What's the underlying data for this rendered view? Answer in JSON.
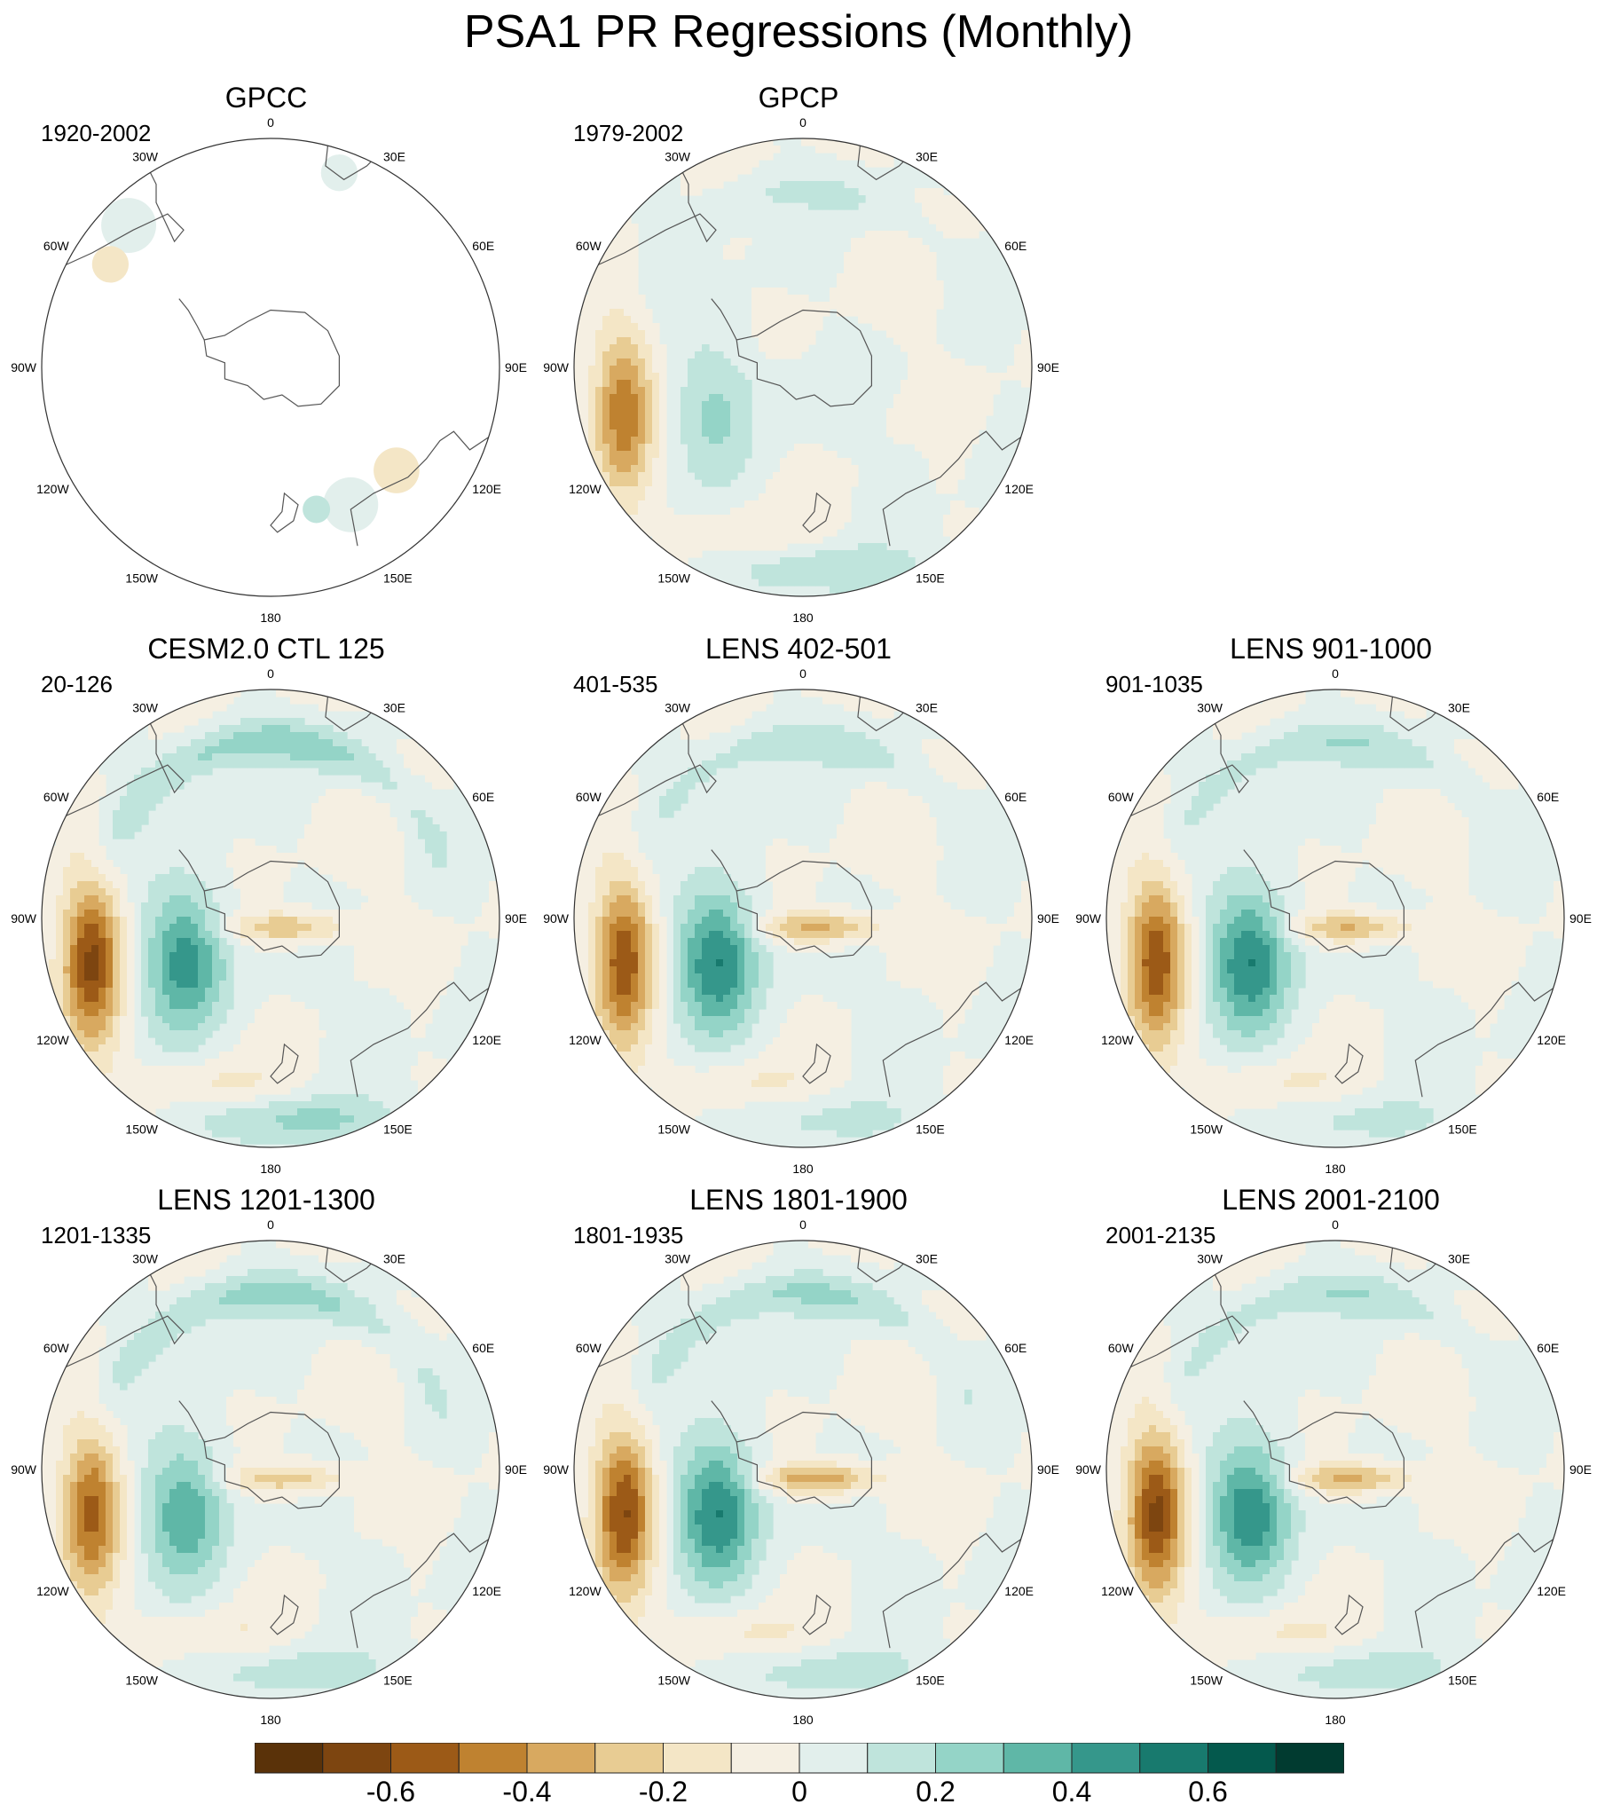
{
  "chart_data": {
    "type": "polar-contour-map-grid",
    "title": "PSA1 PR Regressions (Monthly)",
    "longitude_labels": [
      "0",
      "30E",
      "60E",
      "90E",
      "120E",
      "150E",
      "180",
      "150W",
      "120W",
      "90W",
      "60W",
      "30W"
    ],
    "panels": [
      {
        "title": "GPCC",
        "years": "1920-2002",
        "coverage": "land-only",
        "pattern": [
          0,
          0,
          0,
          0,
          0
        ]
      },
      {
        "title": "GPCP",
        "years": "1979-2002",
        "coverage": "full",
        "pattern": [
          -0.45,
          0.22,
          0.12,
          0.05,
          0.18
        ]
      },
      {
        "title": "CESM2.0 CTL 125",
        "years": "20-126",
        "coverage": "full",
        "pattern": [
          -0.6,
          0.45,
          0.28,
          -0.3,
          0.22
        ]
      },
      {
        "title": "LENS 402-501",
        "years": "401-535",
        "coverage": "full",
        "pattern": [
          -0.55,
          0.5,
          0.18,
          -0.35,
          0.12
        ]
      },
      {
        "title": "LENS 901-1000",
        "years": "901-1035",
        "coverage": "full",
        "pattern": [
          -0.55,
          0.5,
          0.2,
          -0.33,
          0.12
        ]
      },
      {
        "title": "LENS 1201-1300",
        "years": "1201-1335",
        "coverage": "full",
        "pattern": [
          -0.5,
          0.38,
          0.25,
          -0.28,
          0.15
        ]
      },
      {
        "title": "LENS 1801-1900",
        "years": "1801-1935",
        "coverage": "full",
        "pattern": [
          -0.58,
          0.5,
          0.22,
          -0.4,
          0.15
        ]
      },
      {
        "title": "LENS 2001-2100",
        "years": "2001-2135",
        "coverage": "full",
        "pattern": [
          -0.6,
          0.48,
          0.2,
          -0.35,
          0.15
        ]
      }
    ],
    "colorbar": {
      "levels": [
        -0.7,
        -0.6,
        -0.5,
        -0.4,
        -0.3,
        -0.2,
        -0.1,
        0,
        0.1,
        0.2,
        0.3,
        0.4,
        0.5,
        0.6,
        0.7
      ],
      "colors": [
        "#5a3209",
        "#7d4510",
        "#9c5a17",
        "#bf8230",
        "#d8a960",
        "#e8cc93",
        "#f4e6c6",
        "#f5efe2",
        "#e2efec",
        "#bfe4dc",
        "#94d4c7",
        "#5fb7a7",
        "#35978b",
        "#187a6e",
        "#04594d",
        "#013b30"
      ],
      "tick_labels": [
        "-0.6",
        "-0.4",
        "-0.2",
        "0",
        "0.2",
        "0.4",
        "0.6"
      ],
      "tick_values": [
        -0.6,
        -0.4,
        -0.2,
        0,
        0.2,
        0.4,
        0.6
      ]
    }
  }
}
